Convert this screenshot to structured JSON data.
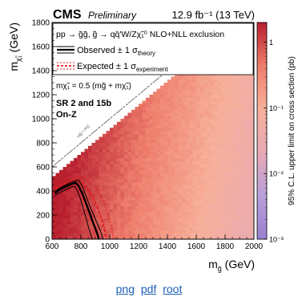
{
  "chart_data": {
    "type": "heatmap",
    "header": {
      "experiment": "CMS",
      "status": "Preliminary",
      "lumi_energy": "12.9 fb⁻¹ (13 TeV)"
    },
    "xaxis": {
      "label_main": "m",
      "label_sub": "g̃",
      "label_unit": " (GeV)",
      "range": [
        600,
        2000
      ],
      "ticks": [
        600,
        800,
        1000,
        1200,
        1400,
        1600,
        1800,
        2000
      ]
    },
    "yaxis": {
      "label_main": "m",
      "label_sub": "χ̃₁",
      "label_unit": " (GeV)",
      "range": [
        0,
        1800
      ],
      "ticks": [
        0,
        200,
        400,
        600,
        800,
        1000,
        1200,
        1400,
        1600,
        1800
      ]
    },
    "zaxis": {
      "label": "95% C.L. upper limit on cross section (pb)",
      "scale": "log",
      "range": [
        0.001,
        2
      ],
      "tick_values": [
        1,
        0.1,
        0.01,
        0.001
      ],
      "tick_labels": [
        "1",
        "10⁻¹",
        "10⁻²",
        "10⁻³"
      ]
    },
    "legend": {
      "process": "pp → g̃g̃, g̃ → qq̄'W/Zχ̃₁⁰  NLO+NLL exclusion",
      "observed": "Observed ± 1 σ",
      "observed_sub": "theory",
      "expected": "Expected ± 1 σ",
      "expected_sub": "experiment"
    },
    "annotations": {
      "mass_relation": "mχ̃₁ = 0.5 (mg̃ + mχ̃₁)",
      "region_line1": "SR 2 and 15b",
      "region_line2": "On-Z",
      "diagonal_label": "mg̃ = mχ̃₁"
    },
    "observed_limit": [
      [
        620,
        380
      ],
      [
        650,
        410
      ],
      [
        700,
        440
      ],
      [
        740,
        460
      ],
      [
        765,
        470
      ],
      [
        785,
        440
      ],
      [
        810,
        380
      ],
      [
        835,
        300
      ],
      [
        860,
        220
      ],
      [
        880,
        150
      ],
      [
        900,
        90
      ],
      [
        915,
        40
      ],
      [
        925,
        0
      ]
    ],
    "observed_plus": [
      [
        620,
        395
      ],
      [
        660,
        430
      ],
      [
        710,
        460
      ],
      [
        760,
        485
      ],
      [
        785,
        490
      ],
      [
        810,
        440
      ],
      [
        835,
        360
      ],
      [
        860,
        280
      ],
      [
        885,
        210
      ],
      [
        910,
        140
      ],
      [
        935,
        70
      ],
      [
        955,
        0
      ]
    ],
    "observed_minus": [
      [
        620,
        360
      ],
      [
        650,
        385
      ],
      [
        700,
        415
      ],
      [
        735,
        435
      ],
      [
        755,
        440
      ],
      [
        775,
        405
      ],
      [
        795,
        340
      ],
      [
        815,
        260
      ],
      [
        835,
        180
      ],
      [
        850,
        110
      ],
      [
        865,
        50
      ],
      [
        880,
        0
      ]
    ],
    "expected_limit": [
      [
        620,
        420
      ],
      [
        680,
        455
      ],
      [
        730,
        480
      ],
      [
        770,
        490
      ],
      [
        800,
        485
      ],
      [
        830,
        440
      ],
      [
        860,
        390
      ],
      [
        890,
        330
      ],
      [
        920,
        250
      ],
      [
        945,
        160
      ],
      [
        965,
        80
      ],
      [
        975,
        0
      ]
    ],
    "expected_plus": [
      [
        620,
        450
      ],
      [
        690,
        490
      ],
      [
        750,
        510
      ],
      [
        800,
        520
      ],
      [
        840,
        500
      ],
      [
        880,
        460
      ],
      [
        920,
        400
      ],
      [
        955,
        320
      ],
      [
        985,
        220
      ],
      [
        1010,
        120
      ],
      [
        1025,
        0
      ]
    ],
    "expected_minus": [
      [
        620,
        390
      ],
      [
        670,
        420
      ],
      [
        710,
        440
      ],
      [
        745,
        450
      ],
      [
        770,
        440
      ],
      [
        795,
        400
      ],
      [
        820,
        340
      ],
      [
        845,
        270
      ],
      [
        870,
        180
      ],
      [
        890,
        100
      ],
      [
        900,
        0
      ]
    ],
    "colors": {
      "observed": "#000000",
      "expected": "#e41a1c",
      "palette_high": "#c02a3a",
      "palette_mid": "#f6a08e",
      "palette_low": "#7a5cc0"
    }
  },
  "links": [
    {
      "label": "png"
    },
    {
      "label": "pdf"
    },
    {
      "label": "root"
    }
  ]
}
